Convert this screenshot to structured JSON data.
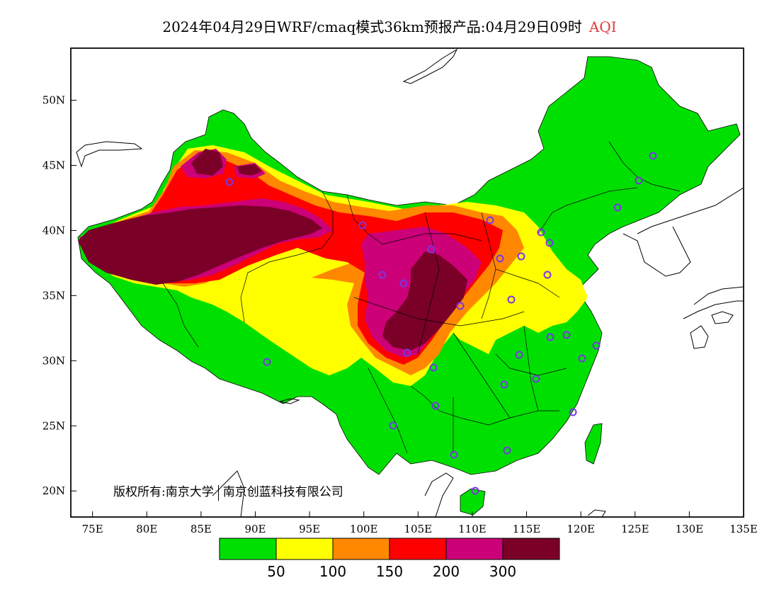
{
  "title": {
    "main": "2024年04月29日WRF/cmaq模式36km预报产品:04月29日09时",
    "variable": "AQI",
    "variable_color": "#e03a3a"
  },
  "map": {
    "lon_labels": [
      "75E",
      "80E",
      "85E",
      "90E",
      "95E",
      "100E",
      "105E",
      "110E",
      "115E",
      "120E",
      "125E",
      "130E",
      "135E"
    ],
    "lat_labels": [
      "50N",
      "45N",
      "40N",
      "35N",
      "30N",
      "25N",
      "20N"
    ],
    "lon_range": [
      73,
      135
    ],
    "lat_range": [
      18,
      54
    ]
  },
  "legend": {
    "colors": [
      "#00e000",
      "#ffff00",
      "#ff8800",
      "#ff0000",
      "#cc0077",
      "#7a0028"
    ],
    "labels": [
      "50",
      "100",
      "150",
      "200",
      "300"
    ]
  },
  "copyright": {
    "left": "版权所有:南京大学",
    "right": "南京创蓝科技有限公司"
  },
  "palette": {
    "ocean": "#ffffff",
    "border": "#000000",
    "station_marker": "#7a36e8"
  }
}
